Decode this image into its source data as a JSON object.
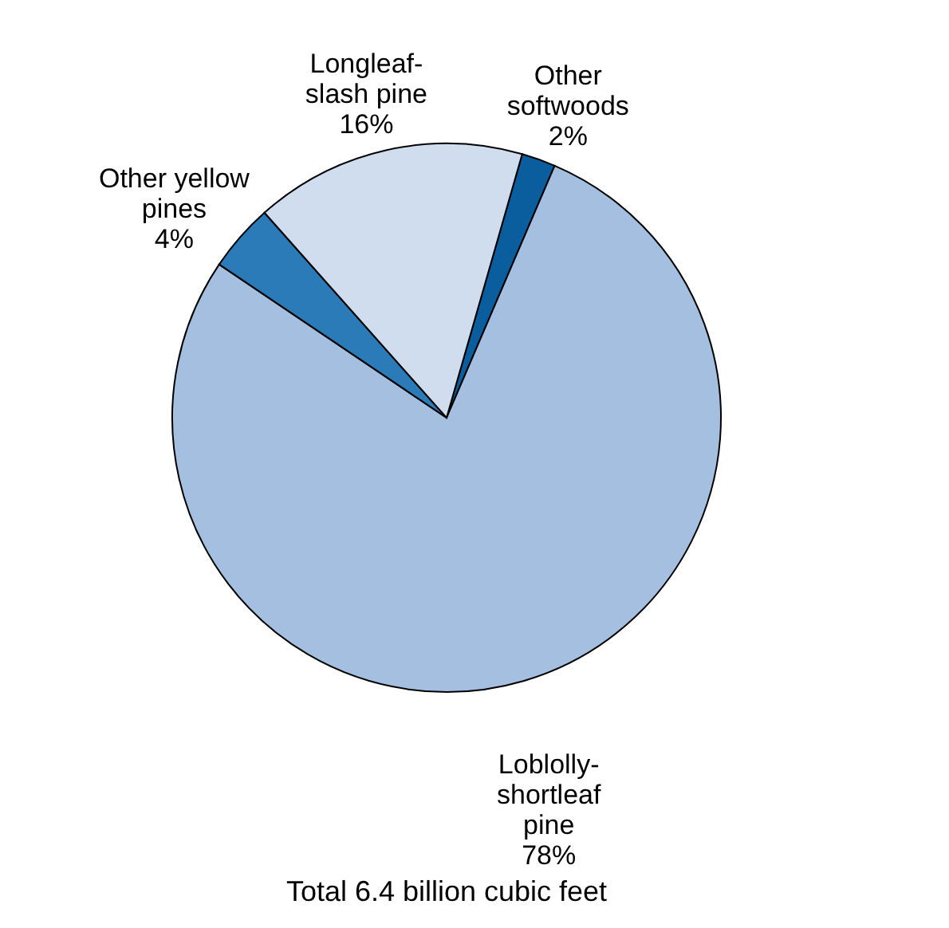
{
  "chart_data": {
    "type": "pie",
    "categories": [
      "Other\nsoftwoods",
      "Loblolly-\nshortleaf\npine",
      "Other yellow\npines",
      "Longleaf-\nslash pine"
    ],
    "values": [
      2,
      78,
      4,
      16
    ],
    "value_labels": [
      "2%",
      "78%",
      "4%",
      "16%"
    ],
    "colors": [
      "#0b5e9e",
      "#a4bfdf",
      "#2b7bb9",
      "#d0ddee"
    ],
    "annotations": [
      "Total 6.4 billion cubic feet"
    ]
  }
}
